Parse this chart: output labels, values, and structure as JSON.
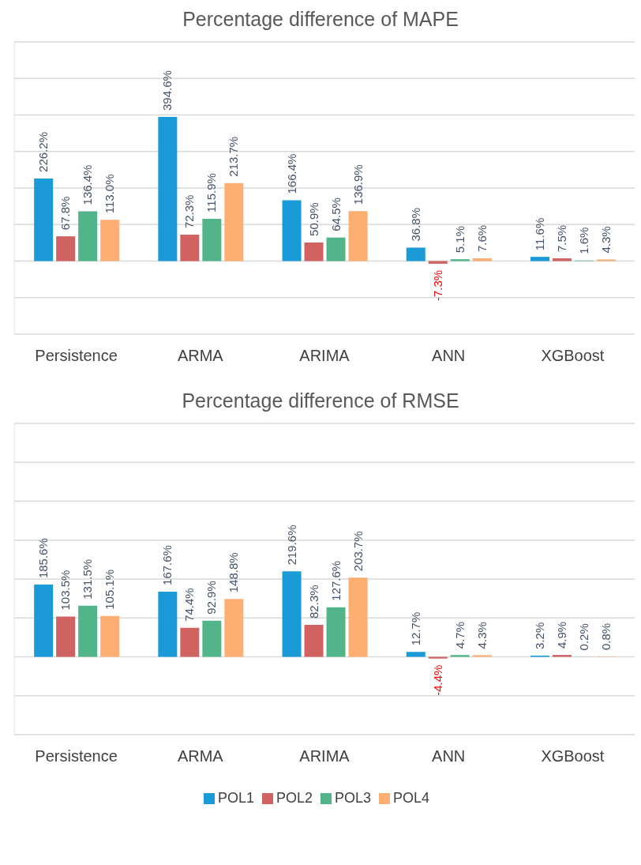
{
  "chart_data": [
    {
      "type": "bar",
      "title": "Percentage difference of MAPE",
      "categories": [
        "Persistence",
        "ARMA",
        "ARIMA",
        "ANN",
        "XGBoost"
      ],
      "series": [
        {
          "color": "#1a9ad6",
          "values": [
            226.2,
            394.6,
            166.4,
            36.8,
            11.6
          ],
          "value_labels": [
            "226.2%",
            "394.6%",
            "166.4%",
            "36.8%",
            "11.6%"
          ]
        },
        {
          "color": "#d06262",
          "values": [
            67.8,
            72.3,
            50.9,
            -7.3,
            7.5
          ],
          "value_labels": [
            "67.8%",
            "72.3%",
            "50.9%",
            "-7.3%",
            "7.5%"
          ]
        },
        {
          "color": "#52b589",
          "values": [
            136.4,
            115.9,
            64.5,
            5.1,
            1.6
          ],
          "value_labels": [
            "136.4%",
            "115.9%",
            "64.5%",
            "5.1%",
            "1.6%"
          ]
        },
        {
          "color": "#fdae72",
          "values": [
            113.0,
            213.7,
            136.9,
            7.6,
            4.3
          ],
          "value_labels": [
            "113.0%",
            "213.7%",
            "136.9%",
            "7.6%",
            "4.3%"
          ]
        }
      ],
      "ylim": [
        -200,
        600
      ],
      "yticks": [
        {
          "value": -200,
          "label": null
        },
        {
          "value": -100,
          "label": null
        },
        {
          "value": 0,
          "label": null
        },
        {
          "value": 100,
          "label": null
        },
        {
          "value": 200,
          "label": null
        },
        {
          "value": 300,
          "label": null
        },
        {
          "value": 400,
          "label": null
        },
        {
          "value": 500,
          "label": null
        },
        {
          "value": 600,
          "label": null
        }
      ],
      "grid": "y",
      "tick_labels": "x"
    },
    {
      "type": "bar",
      "title": "Percentage difference of RMSE",
      "categories": [
        "Persistence",
        "ARMA",
        "ARIMA",
        "ANN",
        "XGBoost"
      ],
      "series": [
        {
          "name": "POL1",
          "color": "#1a9ad6",
          "values": [
            185.6,
            167.6,
            219.6,
            12.7,
            3.2
          ],
          "value_labels": [
            "185.6%",
            "167.6%",
            "219.6%",
            "12.7%",
            "3.2%"
          ]
        },
        {
          "name": "POL2",
          "color": "#d06262",
          "values": [
            103.5,
            74.4,
            82.3,
            -4.4,
            4.9
          ],
          "value_labels": [
            "103.5%",
            "74.4%",
            "82.3%",
            "-4.4%",
            "4.9%"
          ]
        },
        {
          "name": "POL3",
          "color": "#52b589",
          "values": [
            131.5,
            92.9,
            127.6,
            4.7,
            0.2
          ],
          "value_labels": [
            "131.5%",
            "92.9%",
            "127.6%",
            "4.7%",
            "0.2%"
          ]
        },
        {
          "name": "POL4",
          "color": "#fdae72",
          "values": [
            105.1,
            148.8,
            203.7,
            4.3,
            0.8
          ],
          "value_labels": [
            "105.1%",
            "148.8%",
            "203.7%",
            "4.3%",
            "0.8%"
          ]
        }
      ],
      "ylim": [
        -200,
        600
      ],
      "yticks": [
        {
          "value": -200,
          "label": null
        },
        {
          "value": -100,
          "label": null
        },
        {
          "value": 0,
          "label": null
        },
        {
          "value": 100,
          "label": null
        },
        {
          "value": 200,
          "label": null
        },
        {
          "value": 300,
          "label": null
        },
        {
          "value": 400,
          "label": null
        },
        {
          "value": 500,
          "label": null
        },
        {
          "value": 600,
          "label": null
        }
      ],
      "grid": "y",
      "tick_labels": "x",
      "legend": "bottom"
    }
  ]
}
